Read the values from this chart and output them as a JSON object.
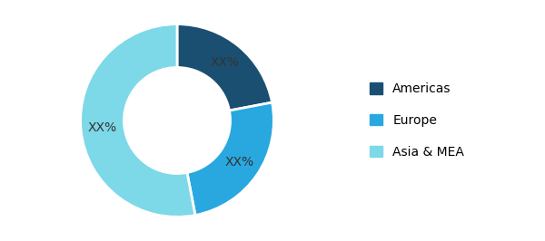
{
  "labels": [
    "Americas",
    "Europe",
    "Asia & MEA"
  ],
  "values": [
    22,
    25,
    53
  ],
  "colors": [
    "#1b4f72",
    "#29a8e0",
    "#7dd8e8"
  ],
  "label_texts": [
    "XX%",
    "XX%",
    "XX%"
  ],
  "label_color": [
    "#333333",
    "#333333",
    "#333333"
  ],
  "label_fontsize": 10,
  "legend_fontsize": 10,
  "background_color": "#ffffff",
  "wedge_edge_color": "#ffffff",
  "donut_width": 0.45,
  "start_angle": 90
}
